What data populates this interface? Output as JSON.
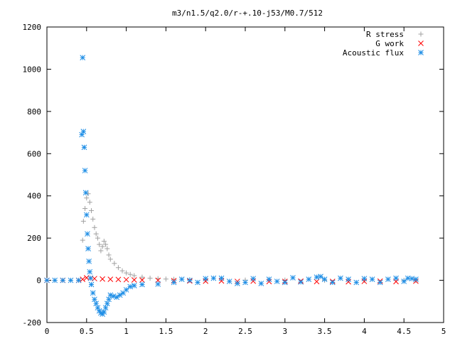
{
  "chart_data": {
    "type": "scatter",
    "title": "m3/n1.5/q2.0/r-+.10-j53/M0.7/512",
    "xlabel": "",
    "ylabel": "",
    "xlim": [
      0,
      5
    ],
    "ylim": [
      -200,
      1200
    ],
    "xticks": [
      "0",
      "0.5",
      "1",
      "1.5",
      "2",
      "2.5",
      "3",
      "3.5",
      "4",
      "4.5",
      "5"
    ],
    "yticks": [
      "-200",
      "0",
      "200",
      "400",
      "600",
      "800",
      "1000",
      "1200"
    ],
    "grid": false,
    "legend_position": "top-right",
    "series": [
      {
        "name": "R stress",
        "marker": "+",
        "color": "#a0a0a0",
        "x": [
          0.0,
          0.1,
          0.2,
          0.3,
          0.4,
          0.45,
          0.46,
          0.48,
          0.5,
          0.52,
          0.54,
          0.56,
          0.58,
          0.6,
          0.62,
          0.64,
          0.66,
          0.68,
          0.7,
          0.72,
          0.74,
          0.76,
          0.78,
          0.8,
          0.85,
          0.9,
          0.95,
          1.0,
          1.05,
          1.1,
          1.2,
          1.3,
          1.4,
          1.5,
          1.6,
          1.8,
          2.0,
          2.5,
          3.0,
          3.5,
          4.0,
          4.5,
          4.65
        ],
        "y": [
          0,
          0,
          0,
          0,
          0,
          190,
          280,
          340,
          390,
          410,
          370,
          330,
          290,
          250,
          220,
          200,
          170,
          140,
          160,
          185,
          170,
          150,
          120,
          100,
          80,
          60,
          45,
          35,
          28,
          22,
          15,
          10,
          8,
          6,
          5,
          3,
          2,
          1,
          1,
          0,
          0,
          0,
          0
        ]
      },
      {
        "name": "G work",
        "marker": "x",
        "color": "#ff0000",
        "x": [
          0.0,
          0.2,
          0.4,
          0.45,
          0.5,
          0.55,
          0.6,
          0.7,
          0.8,
          0.9,
          1.0,
          1.1,
          1.2,
          1.4,
          1.6,
          1.8,
          2.0,
          2.2,
          2.4,
          2.6,
          2.8,
          3.0,
          3.2,
          3.4,
          3.6,
          3.8,
          4.0,
          4.2,
          4.4,
          4.65
        ],
        "y": [
          0,
          0,
          0,
          5,
          12,
          10,
          8,
          6,
          5,
          4,
          3,
          2,
          1,
          0,
          -2,
          -3,
          -4,
          -3,
          -5,
          -4,
          -6,
          -5,
          -4,
          -6,
          -5,
          -7,
          -5,
          -4,
          -6,
          -4
        ]
      },
      {
        "name": "Acoustic flux",
        "marker": "*",
        "color": "#1e8ee6",
        "x": [
          0.0,
          0.1,
          0.2,
          0.3,
          0.4,
          0.44,
          0.45,
          0.46,
          0.47,
          0.48,
          0.49,
          0.5,
          0.51,
          0.52,
          0.53,
          0.54,
          0.55,
          0.56,
          0.58,
          0.6,
          0.62,
          0.64,
          0.66,
          0.68,
          0.7,
          0.72,
          0.74,
          0.76,
          0.78,
          0.8,
          0.84,
          0.88,
          0.92,
          0.96,
          1.0,
          1.05,
          1.1,
          1.2,
          1.4,
          1.6,
          1.7,
          1.8,
          1.9,
          2.0,
          2.1,
          2.2,
          2.3,
          2.4,
          2.5,
          2.6,
          2.7,
          2.8,
          2.9,
          3.0,
          3.1,
          3.2,
          3.3,
          3.4,
          3.45,
          3.5,
          3.6,
          3.7,
          3.8,
          3.9,
          4.0,
          4.1,
          4.2,
          4.3,
          4.4,
          4.5,
          4.55,
          4.6,
          4.65
        ],
        "y": [
          0,
          0,
          0,
          0,
          0,
          690,
          1055,
          705,
          630,
          520,
          415,
          310,
          220,
          150,
          90,
          40,
          10,
          -20,
          -60,
          -90,
          -110,
          -130,
          -145,
          -155,
          -160,
          -150,
          -130,
          -110,
          -90,
          -70,
          -75,
          -80,
          -70,
          -60,
          -45,
          -30,
          -25,
          -20,
          -18,
          -10,
          5,
          0,
          -10,
          8,
          10,
          10,
          -5,
          -15,
          -10,
          8,
          -15,
          5,
          -5,
          -10,
          12,
          -8,
          5,
          15,
          18,
          5,
          -10,
          10,
          5,
          -10,
          8,
          5,
          -10,
          5,
          10,
          -5,
          10,
          8,
          5
        ]
      }
    ]
  }
}
